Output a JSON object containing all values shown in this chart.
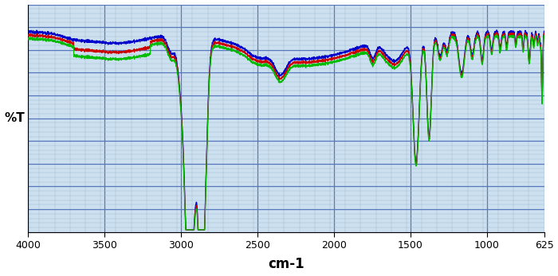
{
  "xmin": 625,
  "xmax": 4000,
  "ymin": 0,
  "ymax": 100,
  "xlabel": "cm-1",
  "ylabel": "%T",
  "xticks": [
    4000,
    3500,
    3000,
    2500,
    2000,
    1500,
    1000,
    625
  ],
  "background_color": "#cde0f0",
  "grid_major_color": "#5577bb",
  "grid_minor_color": "#a0bbd0",
  "line_colors": [
    "#00bb00",
    "#cc0000",
    "#0000cc"
  ],
  "figsize": [
    7.0,
    3.47
  ],
  "dpi": 100
}
